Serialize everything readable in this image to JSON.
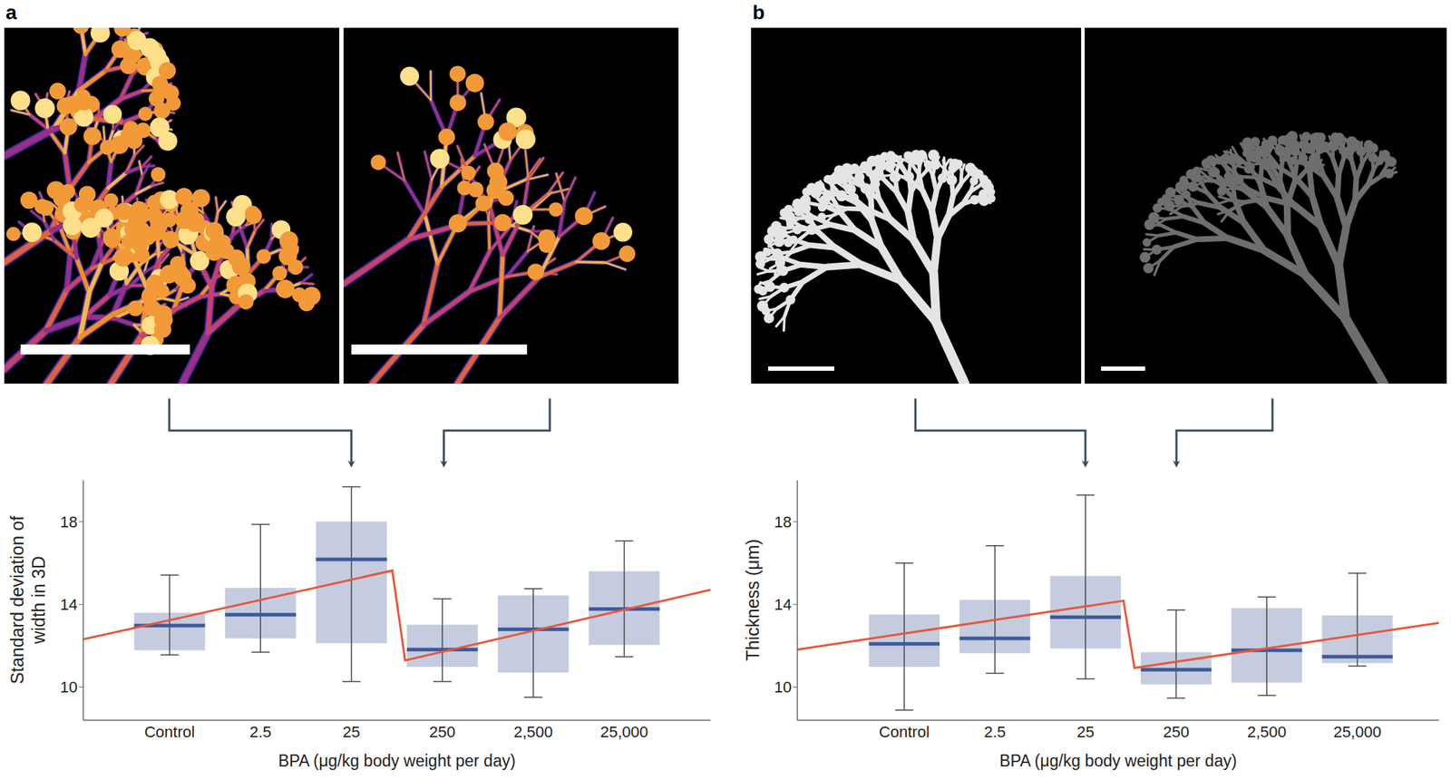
{
  "chart_data": [
    {
      "type": "box",
      "title": "a",
      "categories": [
        "Control",
        "2.5",
        "25",
        "250",
        "2,500",
        "25,000"
      ],
      "x_label": "BPA (μg/kg body weight per day)",
      "y_label": "Standard deviation of width in 3D",
      "xlim": [
        -0.95,
        5.95
      ],
      "ylim": [
        8.4,
        20
      ],
      "yticks": [
        10,
        14,
        18
      ],
      "color": "#c5cce0",
      "boxes": {
        "whisker_low": [
          11.56,
          11.69,
          10.27,
          10.27,
          9.51,
          11.47
        ],
        "q1": [
          11.78,
          12.36,
          12.13,
          10.98,
          10.71,
          12.04
        ],
        "median": [
          12.98,
          13.5,
          16.18,
          11.82,
          12.8,
          13.78
        ],
        "q3": [
          13.6,
          14.8,
          18.0,
          13.02,
          14.44,
          15.6
        ],
        "whisker_high": [
          15.42,
          17.87,
          19.69,
          14.27,
          14.76,
          17.07
        ]
      },
      "trend": {
        "x": [
          -0.95,
          2.45,
          2.59,
          5.95
        ],
        "values": [
          12.31,
          15.64,
          11.29,
          14.71
        ],
        "color": "#e8573a"
      }
    },
    {
      "type": "box",
      "title": "b",
      "categories": [
        "Control",
        "2.5",
        "25",
        "250",
        "2,500",
        "25,000"
      ],
      "x_label": "BPA (μg/kg body weight per day)",
      "y_label": "Thickness (μm)",
      "xlim": [
        -1.18,
        5.9
      ],
      "ylim": [
        8.4,
        20
      ],
      "yticks": [
        10,
        14,
        18
      ],
      "color": "#c5cce0",
      "boxes": {
        "whisker_low": [
          8.89,
          10.67,
          10.4,
          9.47,
          9.6,
          11.02
        ],
        "q1": [
          10.98,
          11.64,
          11.87,
          10.13,
          10.22,
          11.16
        ],
        "median": [
          12.09,
          12.36,
          13.38,
          10.84,
          11.78,
          11.47
        ],
        "q3": [
          13.51,
          14.22,
          15.38,
          11.69,
          13.82,
          13.47
        ],
        "whisker_high": [
          16.0,
          16.84,
          19.29,
          13.73,
          14.36,
          15.51
        ]
      },
      "trend": {
        "x": [
          -1.18,
          2.42,
          2.54,
          5.9
        ],
        "values": [
          11.82,
          14.18,
          10.93,
          13.11
        ],
        "color": "#e8573a"
      }
    }
  ]
}
